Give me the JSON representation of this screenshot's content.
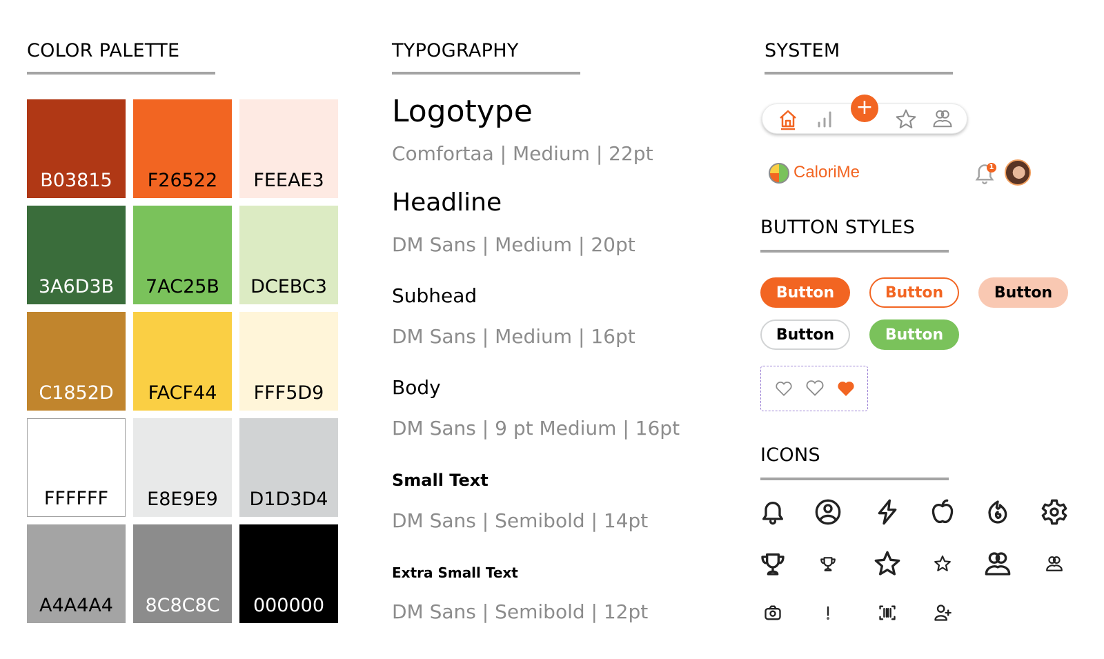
{
  "sections": {
    "palette": "COLOR PALETTE",
    "typography": "TYPOGRAPHY",
    "system": "SYSTEM",
    "buttons": "BUTTON STYLES",
    "icons": "ICONS"
  },
  "palette": [
    {
      "hex": "B03815",
      "bg": "#B03815",
      "fg": "#ffffff"
    },
    {
      "hex": "F26522",
      "bg": "#F26522",
      "fg": "#000000"
    },
    {
      "hex": "FEEAE3",
      "bg": "#FEEAE3",
      "fg": "#000000"
    },
    {
      "hex": "3A6D3B",
      "bg": "#3A6D3B",
      "fg": "#ffffff"
    },
    {
      "hex": "7AC25B",
      "bg": "#7AC25B",
      "fg": "#000000"
    },
    {
      "hex": "DCEBC3",
      "bg": "#DCEBC3",
      "fg": "#000000"
    },
    {
      "hex": "C1852D",
      "bg": "#C1852D",
      "fg": "#ffffff"
    },
    {
      "hex": "FACF44",
      "bg": "#FACF44",
      "fg": "#000000"
    },
    {
      "hex": "FFF5D9",
      "bg": "#FFF5D9",
      "fg": "#000000"
    },
    {
      "hex": "FFFFFF",
      "bg": "#FFFFFF",
      "fg": "#000000"
    },
    {
      "hex": "E8E9E9",
      "bg": "#E8E9E9",
      "fg": "#000000"
    },
    {
      "hex": "D1D3D4",
      "bg": "#D1D3D4",
      "fg": "#000000"
    },
    {
      "hex": "A4A4A4",
      "bg": "#A4A4A4",
      "fg": "#000000"
    },
    {
      "hex": "8C8C8C",
      "bg": "#8C8C8C",
      "fg": "#ffffff"
    },
    {
      "hex": "000000",
      "bg": "#000000",
      "fg": "#ffffff"
    }
  ],
  "typography": [
    {
      "name": "Logotype",
      "spec": "Comfortaa | Medium | 22pt"
    },
    {
      "name": "Headline",
      "spec": "DM Sans | Medium | 20pt"
    },
    {
      "name": "Subhead",
      "spec": "DM Sans | Medium | 16pt"
    },
    {
      "name": "Body",
      "spec": "DM Sans | 9 pt Medium | 16pt"
    },
    {
      "name": "Small Text",
      "spec": "DM Sans | Semibold | 14pt"
    },
    {
      "name": "Extra Small Text",
      "spec": "DM Sans | Semibold | 12pt"
    }
  ],
  "system": {
    "nav_icons": [
      "home-icon",
      "chart-icon",
      "plus-icon",
      "star-icon",
      "users-icon"
    ],
    "brand": "CaloriMe",
    "notification_count": "1",
    "accent": "#F26522"
  },
  "buttons": [
    "Button",
    "Button",
    "Button",
    "Button",
    "Button"
  ],
  "icons": [
    "bell",
    "user-circle",
    "lightning",
    "apple",
    "flame",
    "gear",
    "trophy",
    "trophy-small",
    "star",
    "star-small",
    "users",
    "users-small",
    "camera",
    "exclamation",
    "barcode",
    "user-add"
  ]
}
